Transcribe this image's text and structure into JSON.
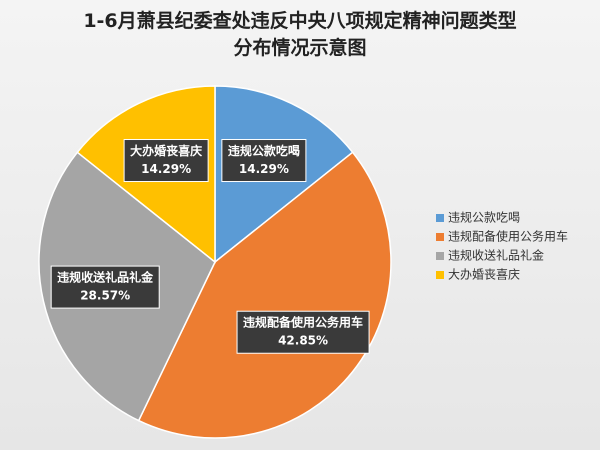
{
  "chart_data": {
    "type": "pie",
    "title": "1-6月萧县纪委查处违反中央八项规定精神问题类型分布情况示意图",
    "categories": [
      "违规公款吃喝",
      "违规配备使用公务用车",
      "违规收送礼品礼金",
      "大办婚丧喜庆"
    ],
    "values": [
      14.29,
      42.85,
      28.57,
      14.29
    ],
    "value_labels": [
      "14.29%",
      "42.85%",
      "28.57%",
      "14.29%"
    ],
    "colors": [
      "#5b9bd5",
      "#ed7d31",
      "#a5a5a5",
      "#ffc000"
    ],
    "legend": "right"
  }
}
